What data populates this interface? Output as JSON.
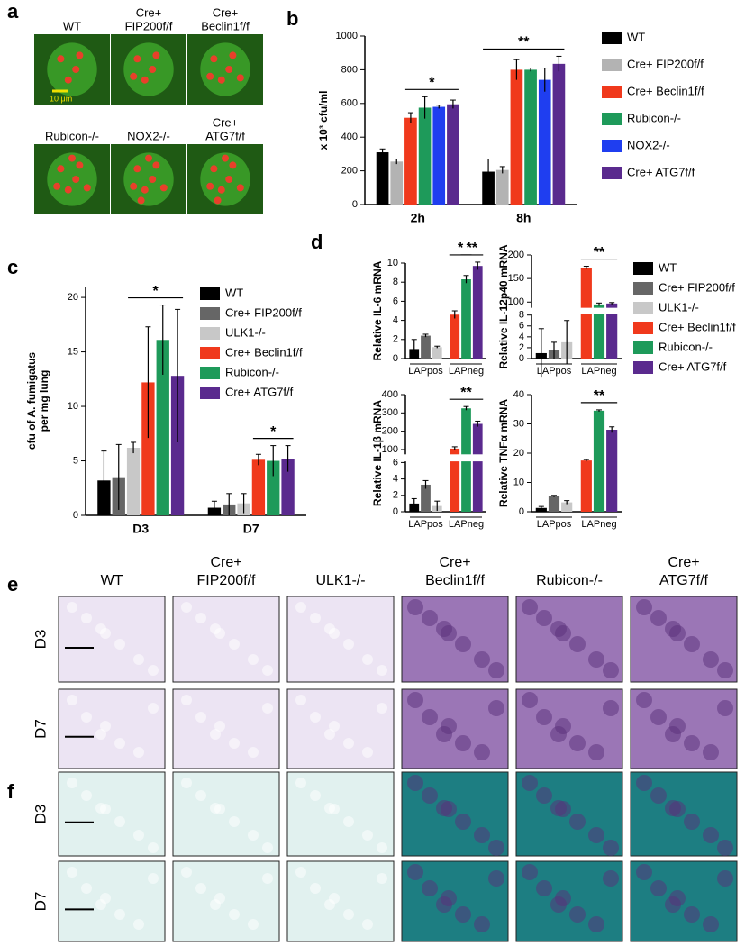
{
  "panel_letters": [
    "a",
    "b",
    "c",
    "d",
    "e",
    "f"
  ],
  "panel_a": {
    "images": [
      [
        "WT"
      ],
      [
        "Cre+",
        "FIP200f/f"
      ],
      [
        "Cre+",
        "Beclin1f/f"
      ],
      [
        "Rubicon-/-"
      ],
      [
        "NOX2-/-"
      ],
      [
        "Cre+",
        "ATG7f/f"
      ]
    ],
    "scale_bar": "10 μm"
  },
  "panel_e": {
    "columns": [
      [
        "WT"
      ],
      [
        "Cre+",
        "FIP200f/f"
      ],
      [
        "ULK1-/-"
      ],
      [
        "Cre+",
        "Beclin1f/f"
      ],
      [
        "Rubicon-/-"
      ],
      [
        "Cre+",
        "ATG7f/f"
      ]
    ],
    "rows": [
      "D3",
      "D7"
    ]
  },
  "panel_f": {
    "rows": [
      "D3",
      "D7"
    ]
  },
  "chart_data": [
    {
      "type": "bar",
      "ylabel": "x 10³ cfu/ml",
      "categories": [
        "2h",
        "8h"
      ],
      "ylim": [
        0,
        1000
      ],
      "yticks": [
        0,
        200,
        400,
        600,
        800,
        1000
      ],
      "annotations": [
        "*",
        "**"
      ],
      "series": [
        {
          "name": "WT",
          "color": "#000000",
          "values": [
            310,
            195
          ],
          "errors": [
            20,
            75
          ]
        },
        {
          "name": "Cre+ FIP200f/f",
          "color": "#b3b3b3",
          "values": [
            255,
            205
          ],
          "errors": [
            15,
            20
          ]
        },
        {
          "name": "Cre+ Beclin1f/f",
          "color": "#f0391c",
          "values": [
            515,
            800
          ],
          "errors": [
            30,
            60
          ]
        },
        {
          "name": "Rubicon-/-",
          "color": "#1e9a5a",
          "values": [
            575,
            800
          ],
          "errors": [
            65,
            10
          ]
        },
        {
          "name": "NOX2-/-",
          "color": "#1f3ef0",
          "values": [
            580,
            740
          ],
          "errors": [
            10,
            70
          ]
        },
        {
          "name": "Cre+ ATG7f/f",
          "color": "#5a2a8e",
          "values": [
            595,
            835
          ],
          "errors": [
            25,
            45
          ]
        }
      ]
    },
    {
      "type": "bar",
      "ylabel": [
        "cfu of A. fumigatus",
        "per mg lung"
      ],
      "categories": [
        "D3",
        "D7"
      ],
      "ylim": [
        0,
        21
      ],
      "yticks": [
        0,
        5,
        10,
        15,
        20
      ],
      "annotations": [
        "*",
        "*"
      ],
      "series": [
        {
          "name": "WT",
          "color": "#000000",
          "values": [
            3.2,
            0.7
          ],
          "errors": [
            2.7,
            0.6
          ]
        },
        {
          "name": "Cre+ FIP200f/f",
          "color": "#666666",
          "values": [
            3.5,
            1.0
          ],
          "errors": [
            3.0,
            1.0
          ]
        },
        {
          "name": "ULK1-/-",
          "color": "#c8c8c8",
          "values": [
            6.2,
            1.1
          ],
          "errors": [
            0.5,
            0.9
          ]
        },
        {
          "name": "Cre+ Beclin1f/f",
          "color": "#f0391c",
          "values": [
            12.2,
            5.1
          ],
          "errors": [
            5.1,
            0.5
          ]
        },
        {
          "name": "Rubicon-/-",
          "color": "#1e9a5a",
          "values": [
            16.1,
            5.0
          ],
          "errors": [
            3.2,
            1.4
          ]
        },
        {
          "name": "Cre+ ATG7f/f",
          "color": "#5a2a8e",
          "values": [
            12.8,
            5.2
          ],
          "errors": [
            6.1,
            1.2
          ]
        }
      ]
    },
    {
      "type": "bar",
      "ylabel": "Relative IL-6 mRNA",
      "categories": [
        "LAPpos",
        "LAPneg"
      ],
      "ylim": [
        0,
        10
      ],
      "yticks": [
        0,
        2,
        4,
        6,
        8,
        10
      ],
      "annotations": [
        "*",
        "**"
      ],
      "series": [
        {
          "name": "WT",
          "color": "#000000",
          "values": [
            1.0,
            null
          ],
          "errors": [
            1.0,
            null
          ]
        },
        {
          "name": "Cre+ FIP200f/f",
          "color": "#666666",
          "values": [
            2.4,
            null
          ],
          "errors": [
            0.15,
            null
          ]
        },
        {
          "name": "ULK1-/-",
          "color": "#c8c8c8",
          "values": [
            1.2,
            null
          ],
          "errors": [
            0.1,
            null
          ]
        },
        {
          "name": "Cre+ Beclin1f/f",
          "color": "#f0391c",
          "values": [
            null,
            4.6
          ],
          "errors": [
            null,
            0.4
          ]
        },
        {
          "name": "Rubicon-/-",
          "color": "#1e9a5a",
          "values": [
            null,
            8.3
          ],
          "errors": [
            null,
            0.4
          ]
        },
        {
          "name": "Cre+ ATG7f/f",
          "color": "#5a2a8e",
          "values": [
            null,
            9.7
          ],
          "errors": [
            null,
            0.4
          ]
        }
      ]
    },
    {
      "type": "bar",
      "ylabel": "Relative IL-12p40 mRNA",
      "categories": [
        "LAPpos",
        "LAPneg"
      ],
      "ylim": [
        0,
        200
      ],
      "ybreak": [
        8,
        90
      ],
      "yticks": [
        0,
        2,
        4,
        6,
        8,
        100,
        150,
        200
      ],
      "annotations": [
        "**"
      ],
      "series": [
        {
          "color": "#000000",
          "values": [
            1.0,
            null
          ],
          "errors": [
            4.5,
            null
          ]
        },
        {
          "color": "#666666",
          "values": [
            1.5,
            null
          ],
          "errors": [
            1.5,
            null
          ]
        },
        {
          "color": "#c8c8c8",
          "values": [
            3.0,
            null
          ],
          "errors": [
            4.0,
            null
          ]
        },
        {
          "color": "#f0391c",
          "values": [
            null,
            173
          ],
          "errors": [
            null,
            3
          ]
        },
        {
          "color": "#1e9a5a",
          "values": [
            null,
            95
          ],
          "errors": [
            null,
            3
          ]
        },
        {
          "color": "#5a2a8e",
          "values": [
            null,
            97
          ],
          "errors": [
            null,
            2
          ]
        }
      ]
    },
    {
      "type": "bar",
      "ylabel": "Relative IL-1β mRNA",
      "categories": [
        "LAPpos",
        "LAPneg"
      ],
      "ylim": [
        0,
        400
      ],
      "ybreak": [
        6,
        80
      ],
      "yticks": [
        0,
        2,
        4,
        6,
        100,
        200,
        300,
        400
      ],
      "annotations": [
        "**"
      ],
      "series": [
        {
          "color": "#000000",
          "values": [
            1.0,
            null
          ],
          "errors": [
            0.6,
            null
          ]
        },
        {
          "color": "#666666",
          "values": [
            3.3,
            null
          ],
          "errors": [
            0.5,
            null
          ]
        },
        {
          "color": "#c8c8c8",
          "values": [
            0.7,
            null
          ],
          "errors": [
            0.6,
            null
          ]
        },
        {
          "color": "#f0391c",
          "values": [
            null,
            105
          ],
          "errors": [
            null,
            10
          ]
        },
        {
          "color": "#1e9a5a",
          "values": [
            null,
            325
          ],
          "errors": [
            null,
            10
          ]
        },
        {
          "color": "#5a2a8e",
          "values": [
            null,
            240
          ],
          "errors": [
            null,
            15
          ]
        }
      ]
    },
    {
      "type": "bar",
      "ylabel": "Relative TNFα mRNA",
      "categories": [
        "LAPpos",
        "LAPneg"
      ],
      "ylim": [
        0,
        40
      ],
      "yticks": [
        0,
        10,
        20,
        30,
        40
      ],
      "annotations": [
        "**"
      ],
      "series": [
        {
          "color": "#000000",
          "values": [
            1.3,
            null
          ],
          "errors": [
            0.5,
            null
          ]
        },
        {
          "color": "#666666",
          "values": [
            5.3,
            null
          ],
          "errors": [
            0.3,
            null
          ]
        },
        {
          "color": "#c8c8c8",
          "values": [
            3.2,
            null
          ],
          "errors": [
            0.6,
            null
          ]
        },
        {
          "color": "#f0391c",
          "values": [
            null,
            17.5
          ],
          "errors": [
            null,
            0.3
          ]
        },
        {
          "color": "#1e9a5a",
          "values": [
            null,
            34.5
          ],
          "errors": [
            null,
            0.3
          ]
        },
        {
          "color": "#5a2a8e",
          "values": [
            null,
            28
          ],
          "errors": [
            null,
            1
          ]
        }
      ]
    }
  ]
}
